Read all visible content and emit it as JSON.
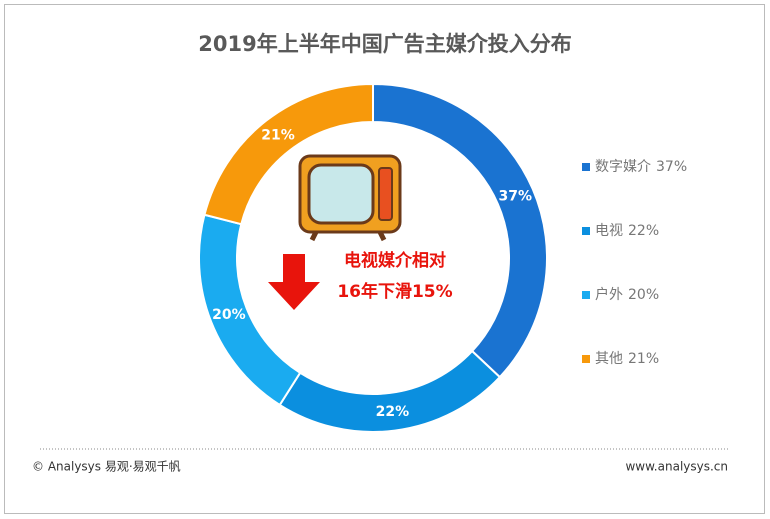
{
  "chart_data": {
    "type": "donut",
    "title": "2019年上半年中国广告主媒介投入分布",
    "categories": [
      "数字媒介",
      "电视",
      "户外",
      "其他"
    ],
    "values": [
      37,
      22,
      20,
      21
    ],
    "value_labels": [
      "37%",
      "22%",
      "20%",
      "21%"
    ],
    "colors": [
      "#1a73d1",
      "#0b8fdf",
      "#1aabf0",
      "#f7990b"
    ],
    "annotation": [
      "电视媒介相对",
      "16年下滑15%"
    ],
    "footer_left": "© Analysys 易观·易观千帆",
    "footer_right": "www.analysys.cn"
  }
}
